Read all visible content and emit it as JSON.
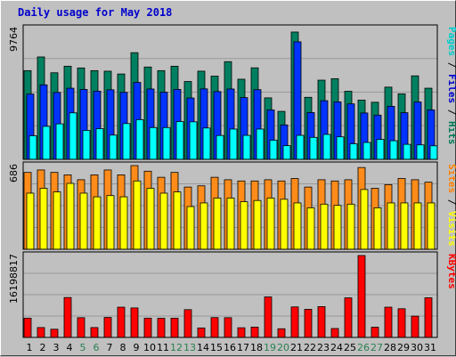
{
  "chart_data": {
    "type": "bar",
    "title": "Daily usage for May 2018",
    "title_color": "#0000cc",
    "background": "#c0c0c0",
    "panel_background": "#c0c0c0",
    "gridlines": true,
    "days": [
      "1",
      "2",
      "3",
      "4",
      "5",
      "6",
      "7",
      "8",
      "9",
      "10",
      "11",
      "12",
      "13",
      "14",
      "15",
      "16",
      "17",
      "18",
      "19",
      "20",
      "21",
      "22",
      "23",
      "24",
      "25",
      "26",
      "27",
      "28",
      "29",
      "30",
      "31"
    ],
    "weekend_days": [
      "5",
      "6",
      "12",
      "13",
      "19",
      "20",
      "26",
      "27"
    ],
    "weekday_color": "#000000",
    "weekend_color": "#2a8050",
    "panels": [
      {
        "name": "hits-files-pages",
        "y_max_label": "9764",
        "y_max": 9764,
        "legend": [
          {
            "text": "Pages",
            "color": "#00cccc"
          },
          {
            "text": " / ",
            "color": "#000000"
          },
          {
            "text": "Files",
            "color": "#0000cc"
          },
          {
            "text": " / ",
            "color": "#000000"
          },
          {
            "text": "Hits",
            "color": "#007a55"
          }
        ],
        "series": [
          {
            "name": "Hits",
            "color": "#008060",
            "values": [
              6620,
              7640,
              6460,
              6950,
              6820,
              6620,
              6580,
              6370,
              7960,
              6890,
              6620,
              6950,
              5810,
              6580,
              6210,
              7290,
              5980,
              6830,
              4590,
              3580,
              9500,
              4630,
              5910,
              6020,
              5080,
              4420,
              4260,
              5390,
              4890,
              6230,
              5310
            ]
          },
          {
            "name": "Files",
            "color": "#0033ff",
            "values": [
              4870,
              5560,
              4990,
              5310,
              5220,
              5090,
              5190,
              5000,
              5740,
              5250,
              5010,
              5220,
              4580,
              5260,
              5060,
              5250,
              4610,
              5200,
              3690,
              2570,
              8770,
              3490,
              4380,
              4290,
              4140,
              3460,
              3300,
              3960,
              3480,
              4280,
              3690
            ]
          },
          {
            "name": "Pages",
            "color": "#00ffff",
            "values": [
              1760,
              2460,
              2650,
              3470,
              2160,
              2290,
              1810,
              2670,
              2960,
              2370,
              2370,
              2820,
              2800,
              2340,
              1780,
              2260,
              1790,
              2260,
              1430,
              1020,
              1790,
              1640,
              1860,
              1680,
              1160,
              1260,
              1490,
              1390,
              1120,
              1080,
              1010
            ]
          }
        ]
      },
      {
        "name": "visits-sites",
        "y_max_label": "686",
        "y_max": 686,
        "legend": [
          {
            "text": "Sites",
            "color": "#ff8000"
          },
          {
            "text": " / ",
            "color": "#000000"
          },
          {
            "text": "Visits",
            "color": "#ffff00"
          }
        ],
        "series": [
          {
            "name": "Visits",
            "color": "#ff8c1a",
            "values": [
              630,
              650,
              630,
              610,
              570,
              610,
              650,
              610,
              686,
              640,
              590,
              630,
              510,
              520,
              590,
              570,
              560,
              560,
              570,
              560,
              580,
              510,
              570,
              560,
              570,
              670,
              500,
              530,
              580,
              570,
              550
            ]
          },
          {
            "name": "Sites",
            "color": "#ffff00",
            "values": [
              460,
              500,
              470,
              540,
              460,
              430,
              440,
              430,
              560,
              500,
              460,
              470,
              350,
              380,
              420,
              420,
              390,
              400,
              420,
              410,
              380,
              340,
              370,
              360,
              370,
              490,
              340,
              380,
              380,
              380,
              380
            ]
          }
        ]
      },
      {
        "name": "kbytes",
        "y_max_label": "16198817",
        "y_max": 16198817,
        "legend": [
          {
            "text": "KBytes",
            "color": "#ff0000"
          }
        ],
        "series": [
          {
            "name": "KBytes",
            "color": "#ff0000",
            "values": [
              3810000,
              1950000,
              1620000,
              7890000,
              3900000,
              1950000,
              3950000,
              5980000,
              5830000,
              3810000,
              3780000,
              3800000,
              5490000,
              1870000,
              3920000,
              3900000,
              1910000,
              2040000,
              8010000,
              1710000,
              6030000,
              5560000,
              6090000,
              1760000,
              7820000,
              16198817,
              2020000,
              5980000,
              5670000,
              4210000,
              7840000
            ]
          }
        ]
      }
    ]
  }
}
